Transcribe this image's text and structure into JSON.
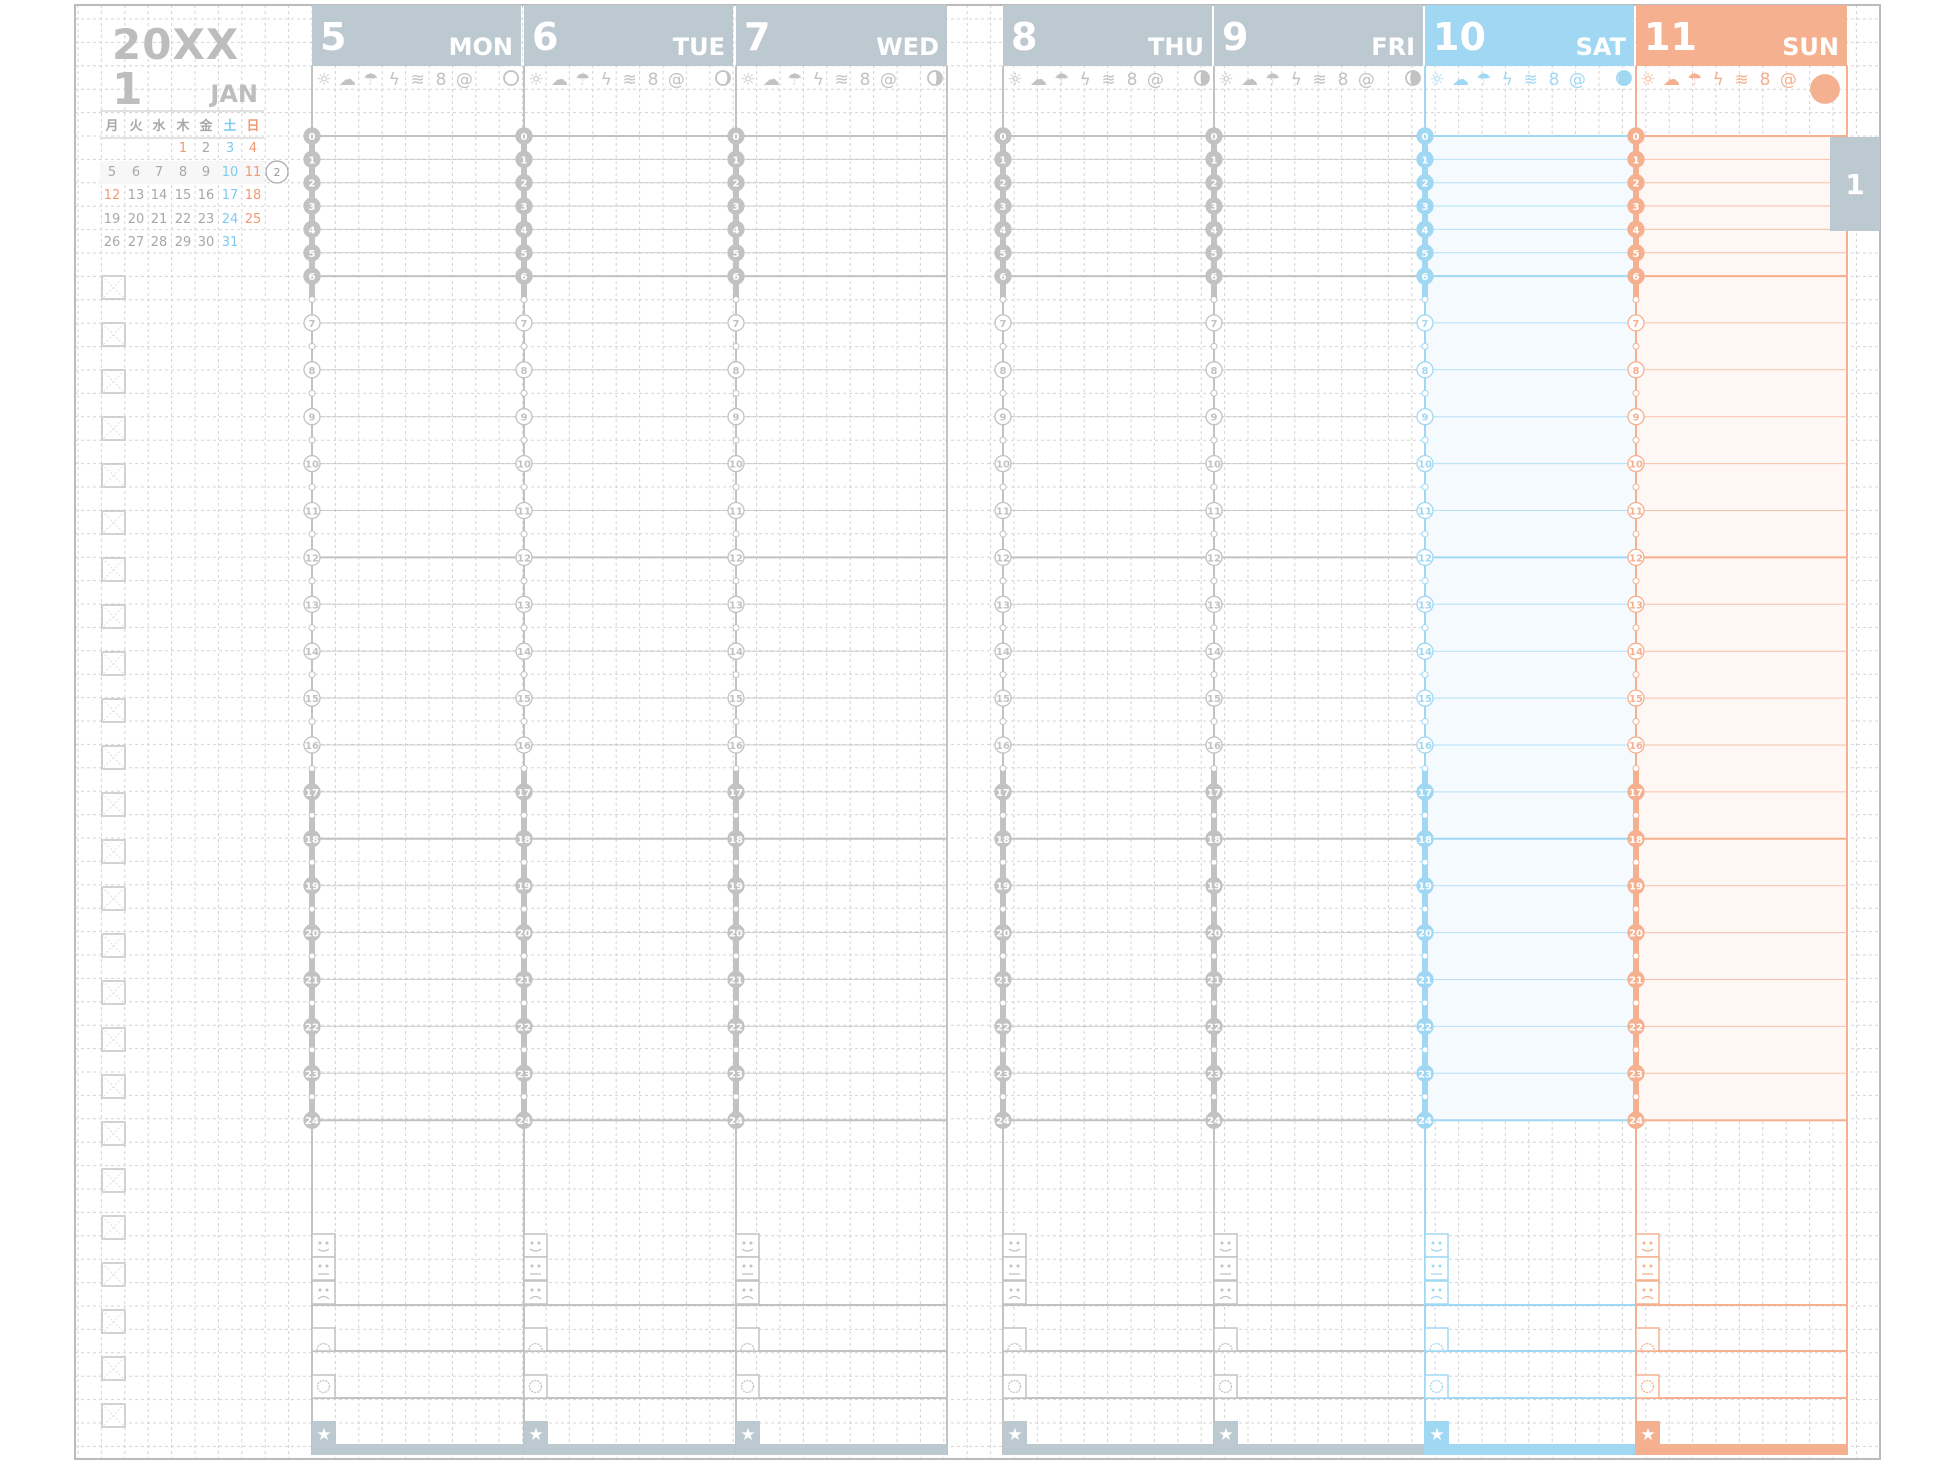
{
  "year": "20XX",
  "month_number": "1",
  "month_name": "JAN",
  "mini_calendar": {
    "weekdays": [
      "月",
      "火",
      "水",
      "木",
      "金",
      "土",
      "日"
    ],
    "weeks": [
      [
        "",
        "",
        "",
        "1",
        "2",
        "3",
        "4"
      ],
      [
        "5",
        "6",
        "7",
        "8",
        "9",
        "10",
        "11"
      ],
      [
        "12",
        "13",
        "14",
        "15",
        "16",
        "17",
        "18"
      ],
      [
        "19",
        "20",
        "21",
        "22",
        "23",
        "24",
        "25"
      ],
      [
        "26",
        "27",
        "28",
        "29",
        "30",
        "31",
        ""
      ]
    ],
    "holidays": [
      "1",
      "12"
    ],
    "current_week_number": "2"
  },
  "month_tab": "1",
  "colors": {
    "weekday": "#bcc9d0",
    "saturday": "#a0d8f4",
    "sunday": "#f5b090",
    "line": "#c2c2c2"
  },
  "weather_icons": [
    "sun-icon",
    "cloud-icon",
    "umbrella-icon",
    "lightning-icon",
    "wind-icon",
    "snowman-icon",
    "typhoon-icon"
  ],
  "days": [
    {
      "num": "5",
      "name": "MON",
      "type": "weekday",
      "moon_phase": 0.0
    },
    {
      "num": "6",
      "name": "TUE",
      "type": "weekday",
      "moon_phase": 0.1
    },
    {
      "num": "7",
      "name": "WED",
      "type": "weekday",
      "moon_phase": 0.2
    },
    {
      "num": "8",
      "name": "THU",
      "type": "weekday",
      "moon_phase": 0.3
    },
    {
      "num": "9",
      "name": "FRI",
      "type": "weekday",
      "moon_phase": 0.35
    },
    {
      "num": "10",
      "name": "SAT",
      "type": "saturday",
      "moon_phase": 0.45
    },
    {
      "num": "11",
      "name": "SUN",
      "type": "sunday",
      "moon_phase": 0.5
    }
  ],
  "hours": [
    "0",
    "1",
    "2",
    "3",
    "4",
    "5",
    "6",
    "7",
    "8",
    "9",
    "10",
    "11",
    "12",
    "13",
    "14",
    "15",
    "16",
    "17",
    "18",
    "19",
    "20",
    "21",
    "22",
    "23",
    "24"
  ],
  "daily_icons": [
    "smile-icon",
    "neutral-face-icon",
    "sad-face-icon",
    "sunrise-icon",
    "sun-icon",
    "star-icon"
  ],
  "checkbox_count": 25
}
